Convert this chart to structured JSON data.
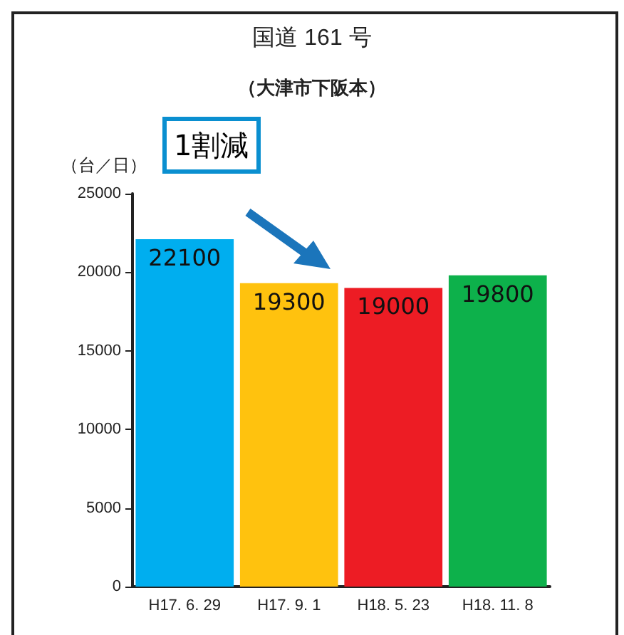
{
  "chart_data": {
    "type": "bar",
    "title": "国道 161 号",
    "subtitle": "（大津市下阪本）",
    "ylabel": "（台／日）",
    "categories": [
      "H17. 6. 29",
      "H17. 9. 1",
      "H18. 5. 23",
      "H18. 11. 8"
    ],
    "values": [
      22100,
      19300,
      19000,
      19800
    ],
    "colors": [
      "#00aeef",
      "#ffc20e",
      "#ed1c24",
      "#0db14b"
    ],
    "ylim": [
      0,
      25000
    ],
    "yticks": [
      0,
      5000,
      10000,
      15000,
      20000,
      25000
    ],
    "grid": false,
    "data_labels": true,
    "annotations": [
      "1割減"
    ]
  }
}
